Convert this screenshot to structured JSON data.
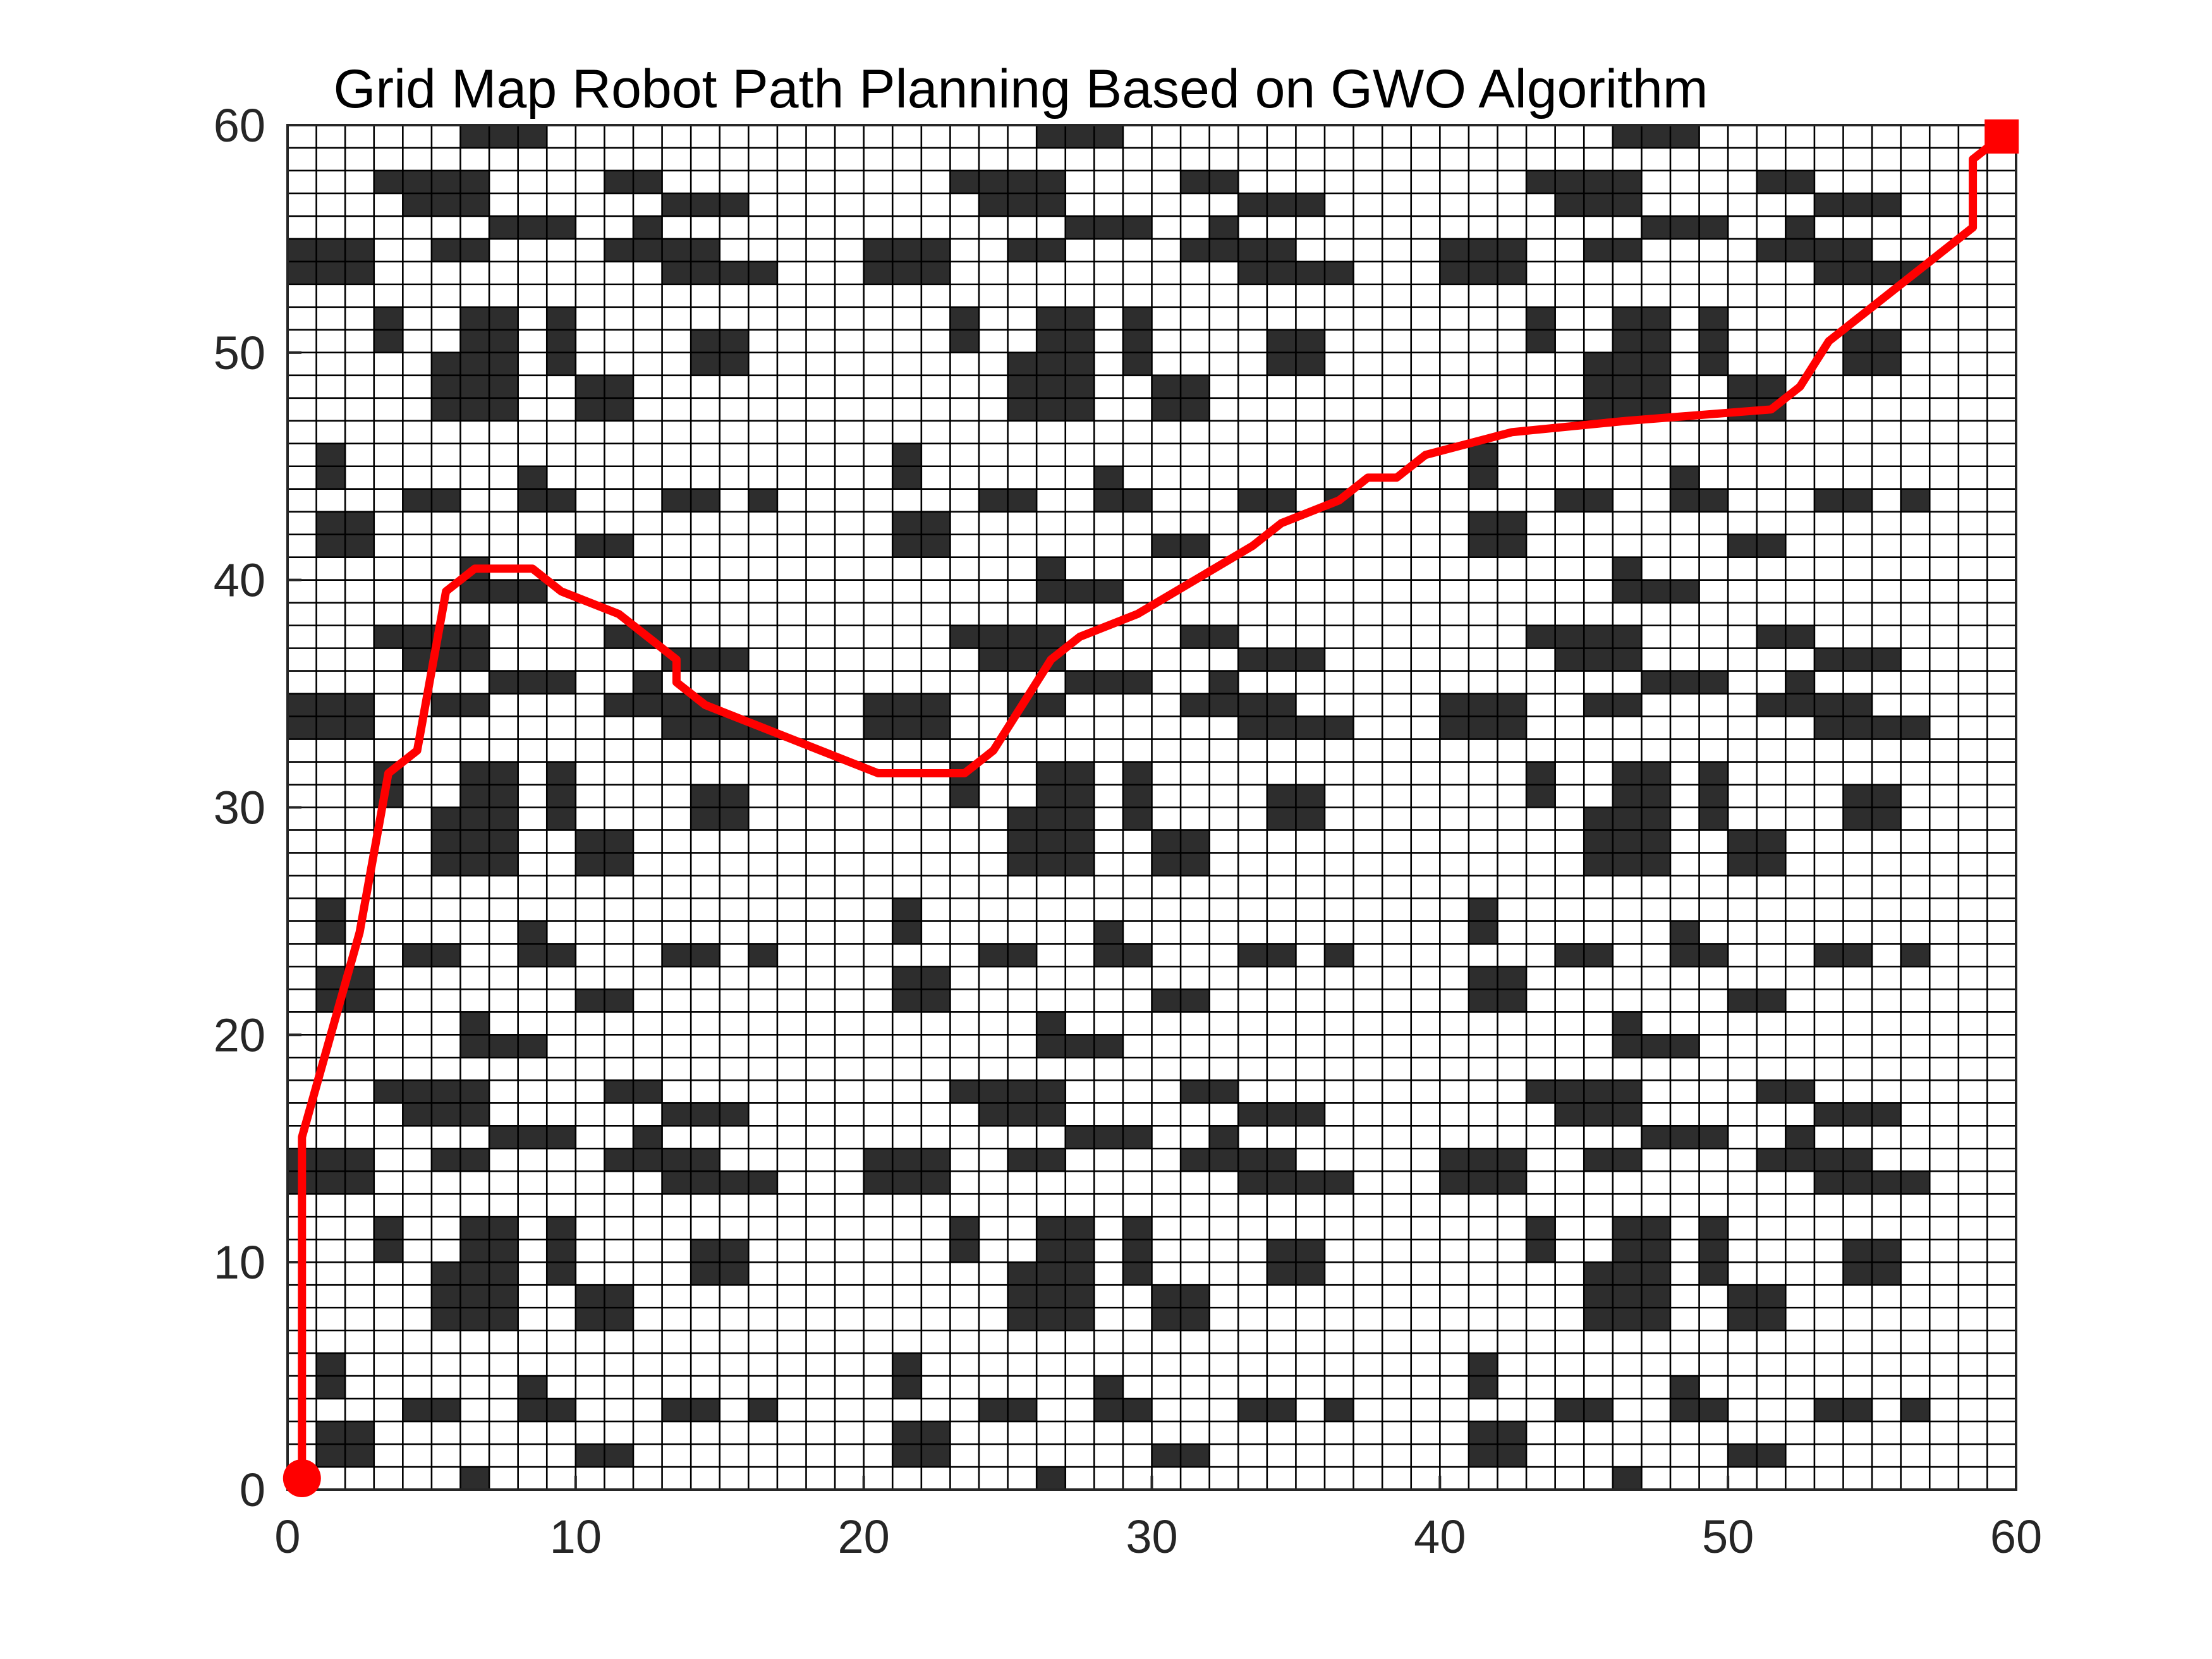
{
  "chart_data": {
    "type": "heatmap",
    "title": "Grid Map Robot Path Planning Based on GWO Algorithm",
    "xlabel": "",
    "ylabel": "",
    "xlim": [
      0,
      60
    ],
    "ylim": [
      0,
      60
    ],
    "xticks": [
      "0",
      "10",
      "20",
      "30",
      "40",
      "50",
      "60"
    ],
    "yticks": [
      "0",
      "10",
      "20",
      "30",
      "40",
      "50",
      "60"
    ],
    "grid": true,
    "grid_size": 60,
    "colors": {
      "free": "#ffffff",
      "obstacle": "#2d2d2d",
      "grid_line": "#000000",
      "path": "#ff0000",
      "start": "#ff0000",
      "goal": "#ff0000"
    },
    "obstacle_tile": {
      "period": [
        20,
        20
      ],
      "rects": [
        [
          1,
          1,
          2,
          2
        ],
        [
          6,
          0,
          1,
          1
        ],
        [
          10,
          1,
          2,
          1
        ],
        [
          1,
          4,
          1,
          2
        ],
        [
          4,
          3,
          2,
          1
        ],
        [
          8,
          3,
          1,
          2
        ],
        [
          9,
          3,
          1,
          1
        ],
        [
          13,
          3,
          2,
          1
        ],
        [
          16,
          3,
          1,
          1
        ],
        [
          10,
          7,
          2,
          2
        ],
        [
          5,
          7,
          3,
          3
        ],
        [
          3,
          10,
          1,
          2
        ],
        [
          6,
          10,
          2,
          2
        ],
        [
          14,
          9,
          2,
          2
        ],
        [
          9,
          9,
          1,
          3
        ],
        [
          0,
          13,
          3,
          2
        ],
        [
          13,
          13,
          2,
          2
        ],
        [
          11,
          14,
          2,
          1
        ],
        [
          5,
          14,
          2,
          1
        ],
        [
          4,
          16,
          3,
          2
        ],
        [
          3,
          17,
          1,
          1
        ],
        [
          11,
          17,
          2,
          1
        ],
        [
          6,
          19,
          3,
          1
        ],
        [
          13,
          16,
          3,
          1
        ],
        [
          7,
          15,
          3,
          1
        ],
        [
          15,
          13,
          2,
          1
        ],
        [
          12,
          15,
          1,
          1
        ]
      ]
    },
    "start": [
      0.5,
      0.5
    ],
    "goal": [
      59.5,
      59.5
    ],
    "path": [
      [
        0.5,
        0.5
      ],
      [
        0.5,
        15.5
      ],
      [
        1.5,
        20
      ],
      [
        2.5,
        24.5
      ],
      [
        3.5,
        31.5
      ],
      [
        4.5,
        32.5
      ],
      [
        5.5,
        39.5
      ],
      [
        6.5,
        40.5
      ],
      [
        8.5,
        40.5
      ],
      [
        9.5,
        39.5
      ],
      [
        11.5,
        38.5
      ],
      [
        12.5,
        37.5
      ],
      [
        13.5,
        36.5
      ],
      [
        13.5,
        35.5
      ],
      [
        14.5,
        34.5
      ],
      [
        17.5,
        33
      ],
      [
        20.5,
        31.5
      ],
      [
        23.5,
        31.5
      ],
      [
        24.5,
        32.5
      ],
      [
        25.5,
        34.5
      ],
      [
        26.5,
        36.5
      ],
      [
        27.5,
        37.5
      ],
      [
        29.5,
        38.5
      ],
      [
        31.5,
        40
      ],
      [
        33.5,
        41.5
      ],
      [
        34.5,
        42.5
      ],
      [
        36.5,
        43.5
      ],
      [
        37.5,
        44.5
      ],
      [
        38.5,
        44.5
      ],
      [
        39.5,
        45.5
      ],
      [
        42.5,
        46.5
      ],
      [
        46.5,
        47
      ],
      [
        51.5,
        47.5
      ],
      [
        52.5,
        48.5
      ],
      [
        53.5,
        50.5
      ],
      [
        55.5,
        52.5
      ],
      [
        57.5,
        54.5
      ],
      [
        58.5,
        55.5
      ],
      [
        58.5,
        58.5
      ],
      [
        59.5,
        59.5
      ]
    ]
  }
}
